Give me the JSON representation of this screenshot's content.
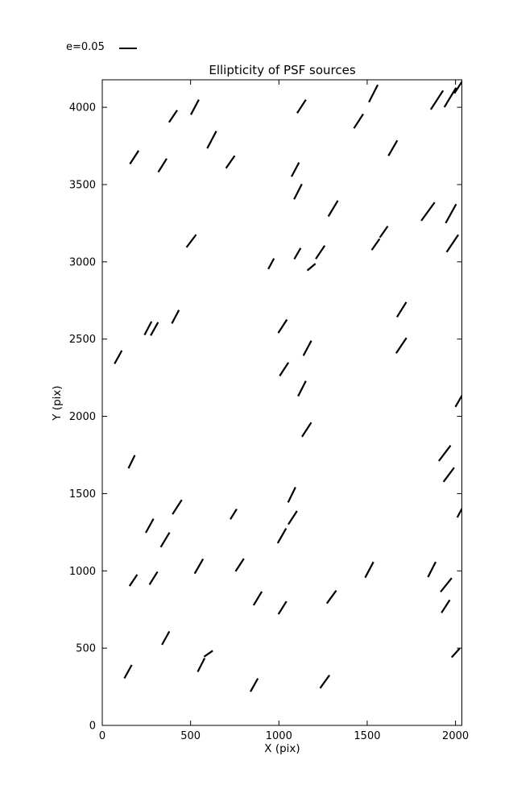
{
  "legend": {
    "label": "e=0.05",
    "scale_e": 0.05
  },
  "chart_data": {
    "type": "scatter",
    "marker": "ellipticity-whisker-line",
    "title": "Ellipticity of PSF sources",
    "xlabel": "X (pix)",
    "ylabel": "Y (pix)",
    "xlim": [
      0,
      2036
    ],
    "ylim": [
      0,
      4178
    ],
    "xticks": [
      0,
      500,
      1000,
      1500,
      2000
    ],
    "yticks": [
      0,
      500,
      1000,
      1500,
      2000,
      2500,
      3000,
      3500,
      4000
    ],
    "grid": false,
    "legend_position": "top-left-outside",
    "line_color": "#000000",
    "whiskers": [
      {
        "x": 401,
        "y": 3942,
        "e": 0.041,
        "pa": 56
      },
      {
        "x": 524,
        "y": 4001,
        "e": 0.048,
        "pa": 62
      },
      {
        "x": 181,
        "y": 3676,
        "e": 0.045,
        "pa": 57
      },
      {
        "x": 341,
        "y": 3624,
        "e": 0.045,
        "pa": 58
      },
      {
        "x": 620,
        "y": 3790,
        "e": 0.055,
        "pa": 62
      },
      {
        "x": 1128,
        "y": 4006,
        "e": 0.045,
        "pa": 57
      },
      {
        "x": 725,
        "y": 3646,
        "e": 0.043,
        "pa": 55
      },
      {
        "x": 1093,
        "y": 3597,
        "e": 0.045,
        "pa": 62
      },
      {
        "x": 1108,
        "y": 3454,
        "e": 0.048,
        "pa": 63
      },
      {
        "x": 1535,
        "y": 4089,
        "e": 0.055,
        "pa": 63
      },
      {
        "x": 1895,
        "y": 4047,
        "e": 0.064,
        "pa": 57
      },
      {
        "x": 1451,
        "y": 3910,
        "e": 0.048,
        "pa": 57
      },
      {
        "x": 1645,
        "y": 3736,
        "e": 0.05,
        "pa": 60
      },
      {
        "x": 1307,
        "y": 3345,
        "e": 0.052,
        "pa": 59
      },
      {
        "x": 1844,
        "y": 3325,
        "e": 0.064,
        "pa": 54
      },
      {
        "x": 1974,
        "y": 3312,
        "e": 0.061,
        "pa": 61
      },
      {
        "x": 1983,
        "y": 3119,
        "e": 0.059,
        "pa": 56
      },
      {
        "x": 1970,
        "y": 4064,
        "e": 0.064,
        "pa": 59
      },
      {
        "x": 2018,
        "y": 4133,
        "e": 0.045,
        "pa": 57
      },
      {
        "x": 504,
        "y": 3135,
        "e": 0.045,
        "pa": 53
      },
      {
        "x": 259,
        "y": 2570,
        "e": 0.043,
        "pa": 62
      },
      {
        "x": 295,
        "y": 2566,
        "e": 0.043,
        "pa": 61
      },
      {
        "x": 414,
        "y": 2644,
        "e": 0.043,
        "pa": 62
      },
      {
        "x": 90,
        "y": 2383,
        "e": 0.043,
        "pa": 61
      },
      {
        "x": 956,
        "y": 2987,
        "e": 0.034,
        "pa": 62
      },
      {
        "x": 1105,
        "y": 3053,
        "e": 0.036,
        "pa": 60
      },
      {
        "x": 1234,
        "y": 3062,
        "e": 0.045,
        "pa": 56
      },
      {
        "x": 1184,
        "y": 2966,
        "e": 0.03,
        "pa": 40
      },
      {
        "x": 1021,
        "y": 2583,
        "e": 0.045,
        "pa": 57
      },
      {
        "x": 1161,
        "y": 2441,
        "e": 0.048,
        "pa": 62
      },
      {
        "x": 1029,
        "y": 2305,
        "e": 0.045,
        "pa": 57
      },
      {
        "x": 1131,
        "y": 2180,
        "e": 0.048,
        "pa": 63
      },
      {
        "x": 1548,
        "y": 3113,
        "e": 0.039,
        "pa": 55
      },
      {
        "x": 1594,
        "y": 3194,
        "e": 0.039,
        "pa": 55
      },
      {
        "x": 1695,
        "y": 2691,
        "e": 0.05,
        "pa": 58
      },
      {
        "x": 1693,
        "y": 2458,
        "e": 0.052,
        "pa": 56
      },
      {
        "x": 166,
        "y": 1706,
        "e": 0.041,
        "pa": 64
      },
      {
        "x": 424,
        "y": 1413,
        "e": 0.048,
        "pa": 57
      },
      {
        "x": 268,
        "y": 1292,
        "e": 0.045,
        "pa": 61
      },
      {
        "x": 356,
        "y": 1201,
        "e": 0.048,
        "pa": 59
      },
      {
        "x": 1157,
        "y": 1914,
        "e": 0.048,
        "pa": 57
      },
      {
        "x": 1073,
        "y": 1492,
        "e": 0.048,
        "pa": 64
      },
      {
        "x": 743,
        "y": 1367,
        "e": 0.034,
        "pa": 58
      },
      {
        "x": 1078,
        "y": 1344,
        "e": 0.045,
        "pa": 57
      },
      {
        "x": 1017,
        "y": 1227,
        "e": 0.048,
        "pa": 60
      },
      {
        "x": 1939,
        "y": 1761,
        "e": 0.055,
        "pa": 53
      },
      {
        "x": 1962,
        "y": 1622,
        "e": 0.05,
        "pa": 53
      },
      {
        "x": 2020,
        "y": 2102,
        "e": 0.041,
        "pa": 60
      },
      {
        "x": 2027,
        "y": 1382,
        "e": 0.036,
        "pa": 62
      },
      {
        "x": 176,
        "y": 939,
        "e": 0.039,
        "pa": 56
      },
      {
        "x": 290,
        "y": 953,
        "e": 0.043,
        "pa": 58
      },
      {
        "x": 547,
        "y": 1030,
        "e": 0.048,
        "pa": 60
      },
      {
        "x": 359,
        "y": 565,
        "e": 0.043,
        "pa": 61
      },
      {
        "x": 146,
        "y": 348,
        "e": 0.043,
        "pa": 61
      },
      {
        "x": 560,
        "y": 391,
        "e": 0.043,
        "pa": 63
      },
      {
        "x": 601,
        "y": 464,
        "e": 0.03,
        "pa": 35
      },
      {
        "x": 778,
        "y": 1038,
        "e": 0.043,
        "pa": 57
      },
      {
        "x": 880,
        "y": 822,
        "e": 0.045,
        "pa": 59
      },
      {
        "x": 1020,
        "y": 761,
        "e": 0.043,
        "pa": 58
      },
      {
        "x": 1298,
        "y": 831,
        "e": 0.045,
        "pa": 54
      },
      {
        "x": 860,
        "y": 261,
        "e": 0.043,
        "pa": 61
      },
      {
        "x": 1260,
        "y": 283,
        "e": 0.045,
        "pa": 54
      },
      {
        "x": 1512,
        "y": 1007,
        "e": 0.05,
        "pa": 62
      },
      {
        "x": 1866,
        "y": 1009,
        "e": 0.048,
        "pa": 63
      },
      {
        "x": 1947,
        "y": 909,
        "e": 0.05,
        "pa": 51
      },
      {
        "x": 1944,
        "y": 770,
        "e": 0.043,
        "pa": 57
      },
      {
        "x": 2001,
        "y": 469,
        "e": 0.034,
        "pa": 48
      }
    ]
  }
}
